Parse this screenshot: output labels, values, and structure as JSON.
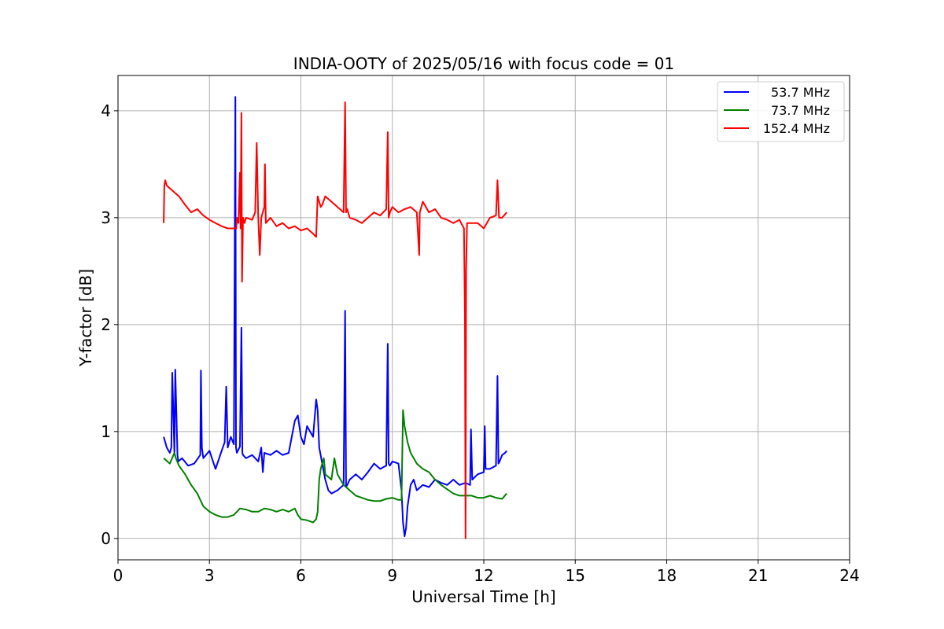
{
  "chart_data": {
    "type": "line",
    "title": "INDIA-OOTY of 2025/05/16 with focus code = 01",
    "xlabel": "Universal Time [h]",
    "ylabel": "Y-factor [dB]",
    "xlim": [
      0,
      24
    ],
    "ylim": [
      -0.2,
      4.33
    ],
    "xticks": [
      0,
      3,
      6,
      9,
      12,
      15,
      18,
      21,
      24
    ],
    "xtick_labels": [
      "0",
      "3",
      "6",
      "9",
      "12",
      "15",
      "18",
      "21",
      "24"
    ],
    "yticks": [
      0,
      1,
      2,
      3,
      4
    ],
    "ytick_labels": [
      "0",
      "1",
      "2",
      "3",
      "4"
    ],
    "grid": true,
    "legend_position": "top-right",
    "series": [
      {
        "name": "53.7 MHz",
        "color": "#0000ff",
        "x": [
          1.5,
          1.6,
          1.7,
          1.75,
          1.78,
          1.85,
          1.88,
          1.95,
          1.98,
          2.1,
          2.3,
          2.5,
          2.7,
          2.72,
          2.75,
          2.8,
          3.0,
          3.2,
          3.4,
          3.5,
          3.55,
          3.6,
          3.7,
          3.8,
          3.85,
          3.87,
          3.9,
          4.0,
          4.05,
          4.08,
          4.1,
          4.2,
          4.4,
          4.6,
          4.7,
          4.75,
          4.8,
          5.0,
          5.2,
          5.4,
          5.6,
          5.8,
          5.9,
          6.0,
          6.1,
          6.2,
          6.4,
          6.5,
          6.55,
          6.6,
          6.7,
          6.8,
          6.9,
          7.0,
          7.2,
          7.4,
          7.45,
          7.48,
          7.52,
          7.6,
          7.8,
          8.0,
          8.2,
          8.4,
          8.6,
          8.8,
          8.85,
          8.88,
          8.92,
          9.0,
          9.2,
          9.3,
          9.35,
          9.4,
          9.45,
          9.5,
          9.6,
          9.7,
          9.8,
          10.0,
          10.2,
          10.4,
          10.6,
          10.8,
          11.0,
          11.2,
          11.4,
          11.55,
          11.58,
          11.62,
          11.8,
          12.0,
          12.03,
          12.06,
          12.2,
          12.4,
          12.45,
          12.48,
          12.52,
          12.6,
          12.7,
          12.75
        ],
        "values": [
          0.95,
          0.85,
          0.8,
          0.85,
          1.55,
          0.8,
          1.58,
          0.78,
          0.72,
          0.75,
          0.68,
          0.7,
          0.78,
          1.57,
          0.85,
          0.75,
          0.82,
          0.65,
          0.82,
          0.9,
          1.42,
          0.85,
          0.95,
          0.88,
          4.13,
          0.85,
          0.8,
          0.86,
          1.97,
          0.8,
          0.78,
          0.75,
          0.78,
          0.72,
          0.85,
          0.62,
          0.8,
          0.78,
          0.82,
          0.78,
          0.8,
          1.1,
          1.15,
          0.95,
          0.88,
          1.05,
          0.95,
          1.3,
          1.2,
          0.85,
          0.7,
          0.55,
          0.45,
          0.42,
          0.45,
          0.5,
          2.13,
          0.48,
          0.5,
          0.55,
          0.6,
          0.55,
          0.62,
          0.7,
          0.65,
          0.68,
          1.82,
          0.7,
          0.68,
          0.72,
          0.7,
          0.45,
          0.15,
          0.02,
          0.1,
          0.3,
          0.5,
          0.55,
          0.45,
          0.5,
          0.48,
          0.55,
          0.52,
          0.5,
          0.55,
          0.5,
          0.52,
          0.5,
          1.02,
          0.55,
          0.6,
          0.62,
          1.05,
          0.65,
          0.65,
          0.68,
          1.52,
          0.7,
          0.72,
          0.78,
          0.8,
          0.82
        ]
      },
      {
        "name": "73.7 MHz",
        "color": "#008000",
        "x": [
          1.5,
          1.7,
          1.85,
          1.9,
          2.0,
          2.2,
          2.4,
          2.6,
          2.8,
          3.0,
          3.2,
          3.4,
          3.6,
          3.8,
          4.0,
          4.2,
          4.4,
          4.6,
          4.8,
          5.0,
          5.2,
          5.4,
          5.6,
          5.8,
          5.9,
          6.0,
          6.2,
          6.4,
          6.5,
          6.55,
          6.6,
          6.65,
          6.7,
          6.75,
          6.8,
          7.0,
          7.1,
          7.2,
          7.4,
          7.6,
          7.8,
          8.0,
          8.2,
          8.4,
          8.6,
          8.8,
          9.0,
          9.2,
          9.3,
          9.35,
          9.4,
          9.5,
          9.6,
          9.7,
          9.8,
          10.0,
          10.2,
          10.4,
          10.6,
          10.8,
          11.0,
          11.2,
          11.4,
          11.6,
          11.8,
          12.0,
          12.2,
          12.4,
          12.6,
          12.75
        ],
        "values": [
          0.75,
          0.7,
          0.8,
          0.75,
          0.68,
          0.6,
          0.5,
          0.42,
          0.3,
          0.25,
          0.22,
          0.2,
          0.2,
          0.22,
          0.28,
          0.27,
          0.25,
          0.25,
          0.28,
          0.27,
          0.25,
          0.27,
          0.25,
          0.28,
          0.22,
          0.18,
          0.17,
          0.15,
          0.18,
          0.25,
          0.55,
          0.65,
          0.7,
          0.75,
          0.6,
          0.55,
          0.75,
          0.6,
          0.5,
          0.45,
          0.4,
          0.38,
          0.36,
          0.35,
          0.35,
          0.37,
          0.38,
          0.36,
          0.36,
          1.2,
          1.05,
          0.9,
          0.8,
          0.75,
          0.7,
          0.65,
          0.62,
          0.55,
          0.5,
          0.46,
          0.42,
          0.4,
          0.4,
          0.4,
          0.38,
          0.38,
          0.4,
          0.38,
          0.37,
          0.42
        ]
      },
      {
        "name": "152.4 MHz",
        "color": "#ff0000",
        "x": [
          1.5,
          1.52,
          1.55,
          1.6,
          1.8,
          2.0,
          2.2,
          2.4,
          2.6,
          2.8,
          3.0,
          3.2,
          3.4,
          3.6,
          3.8,
          3.88,
          3.9,
          3.95,
          4.0,
          4.02,
          4.05,
          4.07,
          4.1,
          4.15,
          4.2,
          4.4,
          4.5,
          4.55,
          4.6,
          4.65,
          4.7,
          4.8,
          4.82,
          4.85,
          5.0,
          5.2,
          5.4,
          5.6,
          5.8,
          6.0,
          6.2,
          6.4,
          6.5,
          6.55,
          6.6,
          6.65,
          6.7,
          6.8,
          7.0,
          7.2,
          7.4,
          7.45,
          7.48,
          7.52,
          7.6,
          7.8,
          8.0,
          8.2,
          8.4,
          8.6,
          8.8,
          8.85,
          8.88,
          8.92,
          9.0,
          9.2,
          9.4,
          9.6,
          9.8,
          9.88,
          9.9,
          9.95,
          10.0,
          10.2,
          10.4,
          10.6,
          10.8,
          11.0,
          11.2,
          11.35,
          11.38,
          11.4,
          11.42,
          11.45,
          11.6,
          11.8,
          12.0,
          12.2,
          12.4,
          12.45,
          12.5,
          12.6,
          12.75
        ],
        "values": [
          2.95,
          3.3,
          3.35,
          3.3,
          3.25,
          3.2,
          3.12,
          3.05,
          3.08,
          3.02,
          2.98,
          2.95,
          2.92,
          2.9,
          2.9,
          2.9,
          3.0,
          2.95,
          3.42,
          2.9,
          3.98,
          2.4,
          3.0,
          2.95,
          3.0,
          2.98,
          3.05,
          3.7,
          3.0,
          2.65,
          3.0,
          3.1,
          3.5,
          2.95,
          3.0,
          2.92,
          2.95,
          2.9,
          2.92,
          2.88,
          2.9,
          2.85,
          2.82,
          3.2,
          3.15,
          3.1,
          3.12,
          3.2,
          3.15,
          3.1,
          3.05,
          4.08,
          3.05,
          3.08,
          3.0,
          2.98,
          2.95,
          3.0,
          3.05,
          3.02,
          3.08,
          3.8,
          3.0,
          3.05,
          3.1,
          3.05,
          3.08,
          3.1,
          3.05,
          2.65,
          3.05,
          3.1,
          3.15,
          3.05,
          3.08,
          3.0,
          2.98,
          2.95,
          2.98,
          2.9,
          2.1,
          0.0,
          2.5,
          2.95,
          2.95,
          2.95,
          2.9,
          3.0,
          3.02,
          3.35,
          3.0,
          3.0,
          3.05
        ]
      }
    ]
  }
}
